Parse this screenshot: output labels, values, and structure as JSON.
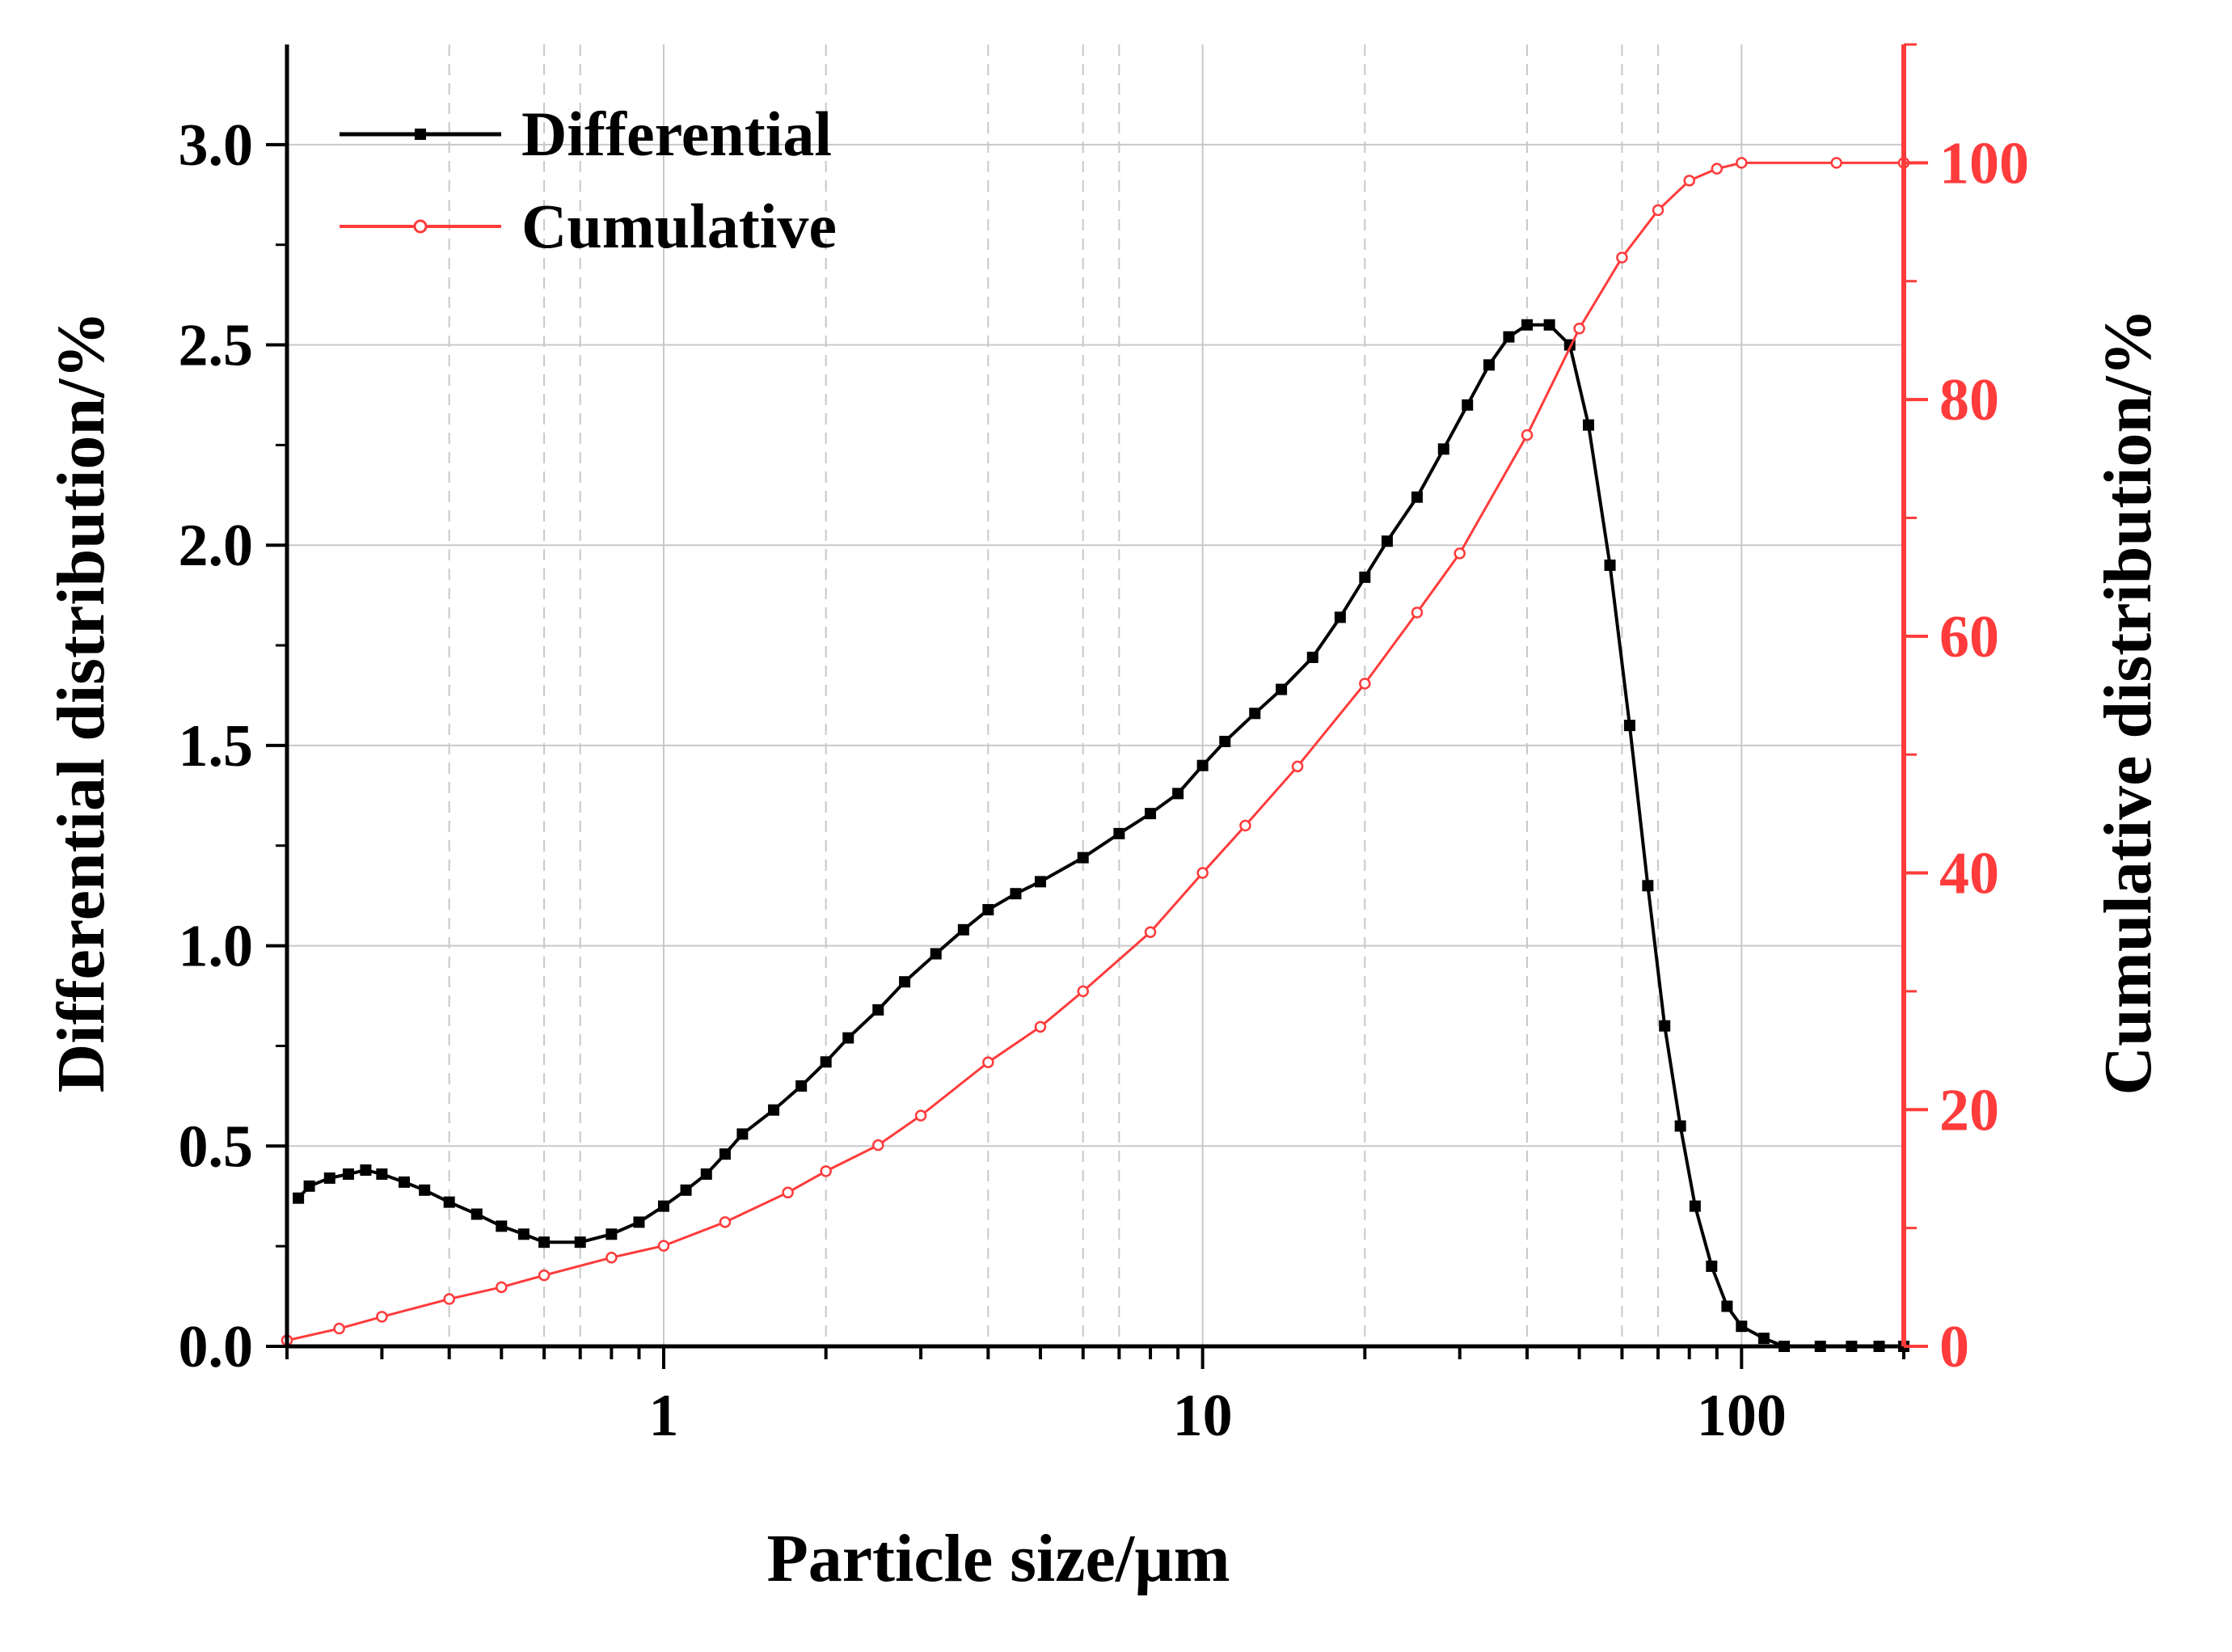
{
  "chart_data": {
    "type": "line",
    "title": "",
    "xlabel": "Particle size/µm",
    "ylabel": "Differential distribution/%",
    "y2label": "Cumulative distribution/%",
    "xscale": "log",
    "xlim": [
      0.2,
      200
    ],
    "ylim": [
      0,
      3.25
    ],
    "y2lim": [
      0,
      110
    ],
    "x_ticks": [
      1,
      10,
      100
    ],
    "x_tick_labels": [
      "1",
      "10",
      "100"
    ],
    "y_ticks": [
      0,
      0.5,
      1,
      1.5,
      2,
      2.5,
      3
    ],
    "y_tick_labels": [
      "0.0",
      "0.5",
      "1.0",
      "1.5",
      "2.0",
      "2.5",
      "3.0"
    ],
    "y2_ticks": [
      0,
      20,
      40,
      60,
      80,
      100
    ],
    "y2_tick_labels": [
      "0",
      "20",
      "40",
      "60",
      "80",
      "100"
    ],
    "grid": true,
    "legend_position": "top-left",
    "colors": {
      "differential": "#000000",
      "cumulative": "#ff3b3b",
      "right_axis": "#ff3b3b",
      "grid": "#c8c8c8"
    },
    "series": [
      {
        "name": "Differential",
        "axis": "left",
        "marker": "square",
        "points": [
          [
            0.21,
            0.37
          ],
          [
            0.22,
            0.4
          ],
          [
            0.24,
            0.42
          ],
          [
            0.26,
            0.43
          ],
          [
            0.28,
            0.44
          ],
          [
            0.3,
            0.43
          ],
          [
            0.33,
            0.41
          ],
          [
            0.36,
            0.39
          ],
          [
            0.4,
            0.36
          ],
          [
            0.45,
            0.33
          ],
          [
            0.5,
            0.3
          ],
          [
            0.55,
            0.28
          ],
          [
            0.6,
            0.26
          ],
          [
            0.7,
            0.26
          ],
          [
            0.8,
            0.28
          ],
          [
            0.9,
            0.31
          ],
          [
            1.0,
            0.35
          ],
          [
            1.1,
            0.39
          ],
          [
            1.2,
            0.43
          ],
          [
            1.3,
            0.48
          ],
          [
            1.4,
            0.53
          ],
          [
            1.6,
            0.59
          ],
          [
            1.8,
            0.65
          ],
          [
            2.0,
            0.71
          ],
          [
            2.2,
            0.77
          ],
          [
            2.5,
            0.84
          ],
          [
            2.8,
            0.91
          ],
          [
            3.2,
            0.98
          ],
          [
            3.6,
            1.04
          ],
          [
            4.0,
            1.09
          ],
          [
            4.5,
            1.13
          ],
          [
            5.0,
            1.16
          ],
          [
            6.0,
            1.22
          ],
          [
            7.0,
            1.28
          ],
          [
            8.0,
            1.33
          ],
          [
            9.0,
            1.38
          ],
          [
            10.0,
            1.45
          ],
          [
            11.0,
            1.51
          ],
          [
            12.5,
            1.58
          ],
          [
            14.0,
            1.64
          ],
          [
            16.0,
            1.72
          ],
          [
            18.0,
            1.82
          ],
          [
            20.0,
            1.92
          ],
          [
            22.0,
            2.01
          ],
          [
            25.0,
            2.12
          ],
          [
            28.0,
            2.24
          ],
          [
            31.0,
            2.35
          ],
          [
            34.0,
            2.45
          ],
          [
            37.0,
            2.52
          ],
          [
            40.0,
            2.55
          ],
          [
            44.0,
            2.55
          ],
          [
            48.0,
            2.5
          ],
          [
            52.0,
            2.3
          ],
          [
            57.0,
            1.95
          ],
          [
            62.0,
            1.55
          ],
          [
            67.0,
            1.15
          ],
          [
            72.0,
            0.8
          ],
          [
            77.0,
            0.55
          ],
          [
            82.0,
            0.35
          ],
          [
            88.0,
            0.2
          ],
          [
            94.0,
            0.1
          ],
          [
            100.0,
            0.05
          ],
          [
            110.0,
            0.02
          ],
          [
            120.0,
            0.0
          ],
          [
            140.0,
            0.0
          ],
          [
            160.0,
            0.0
          ],
          [
            180.0,
            0.0
          ],
          [
            200.0,
            0.0
          ]
        ]
      },
      {
        "name": "Cumulative",
        "axis": "right",
        "marker": "circle",
        "points": [
          [
            0.2,
            0.5
          ],
          [
            0.25,
            1.5
          ],
          [
            0.3,
            2.5
          ],
          [
            0.4,
            4.0
          ],
          [
            0.5,
            5.0
          ],
          [
            0.6,
            6.0
          ],
          [
            0.8,
            7.5
          ],
          [
            1.0,
            8.5
          ],
          [
            1.3,
            10.5
          ],
          [
            1.7,
            13.0
          ],
          [
            2.0,
            14.8
          ],
          [
            2.5,
            17.0
          ],
          [
            3.0,
            19.5
          ],
          [
            4.0,
            24.0
          ],
          [
            5.0,
            27.0
          ],
          [
            6.0,
            30.0
          ],
          [
            8.0,
            35.0
          ],
          [
            10.0,
            40.0
          ],
          [
            12.0,
            44.0
          ],
          [
            15.0,
            49.0
          ],
          [
            20.0,
            56.0
          ],
          [
            25.0,
            62.0
          ],
          [
            30.0,
            67.0
          ],
          [
            40.0,
            77.0
          ],
          [
            50.0,
            86.0
          ],
          [
            60.0,
            92.0
          ],
          [
            70.0,
            96.0
          ],
          [
            80.0,
            98.5
          ],
          [
            90.0,
            99.5
          ],
          [
            100.0,
            100.0
          ],
          [
            150.0,
            100.0
          ],
          [
            200.0,
            100.0
          ]
        ]
      }
    ]
  }
}
